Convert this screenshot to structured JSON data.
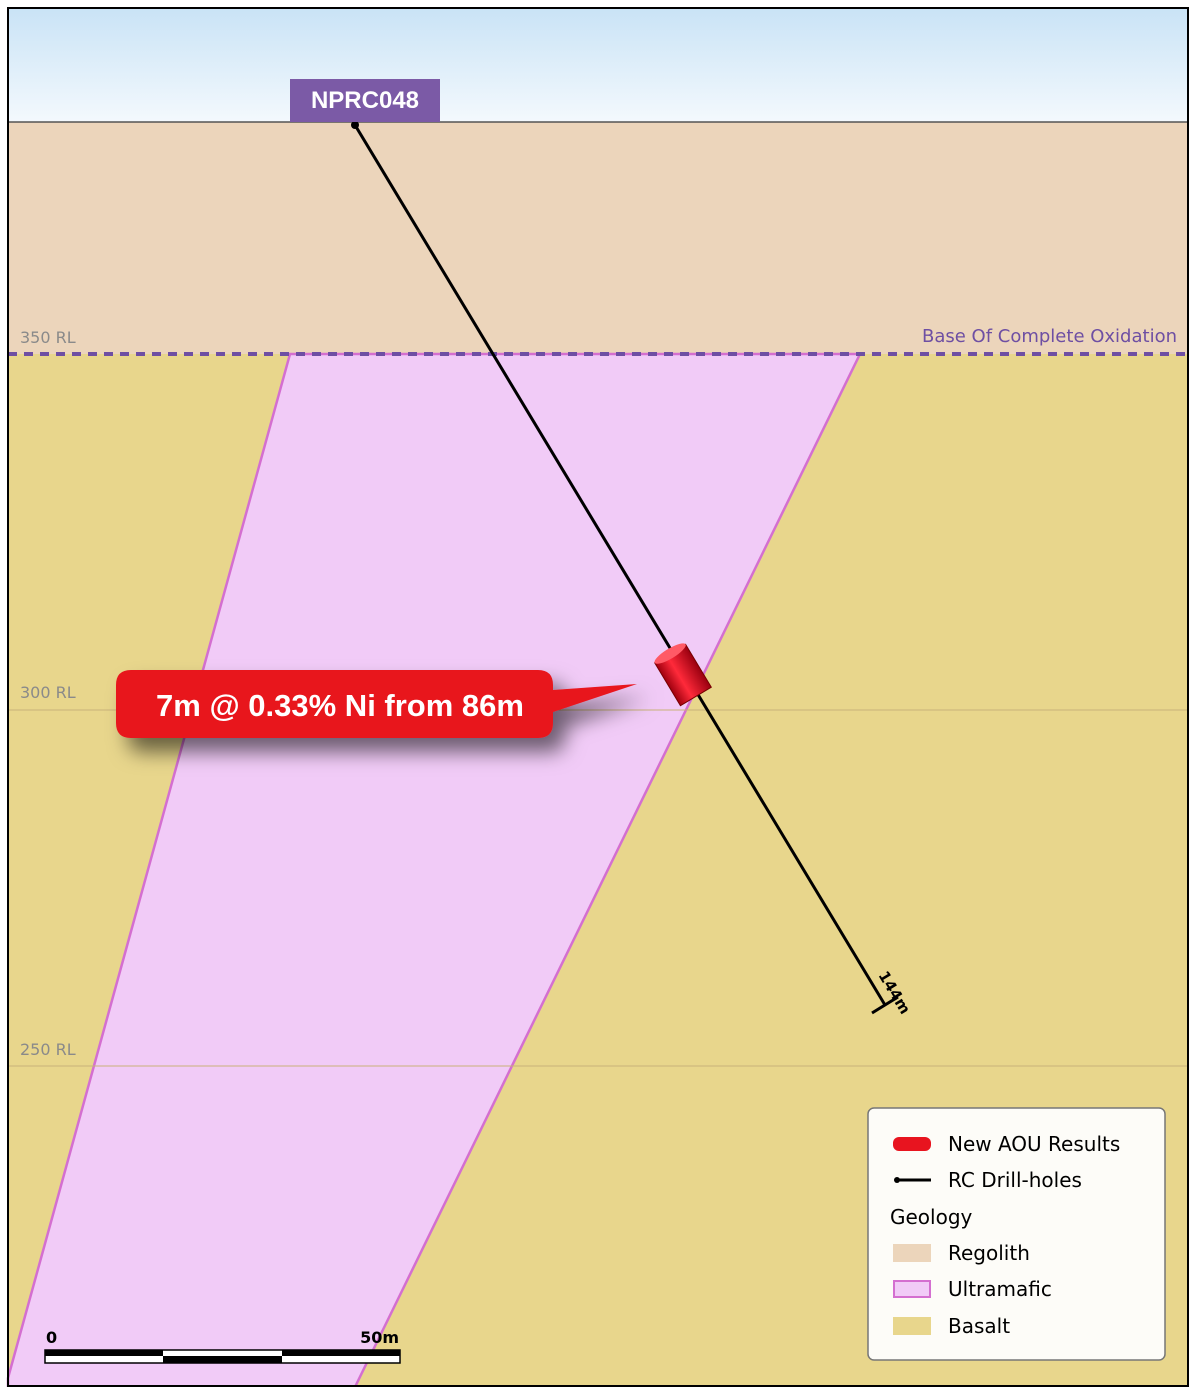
{
  "section": {
    "hole_id": "NPRC048",
    "levels": [
      "350 RL",
      "300 RL",
      "250 RL"
    ],
    "boco_label": "Base Of Complete Oxidation",
    "intercept": "7m @ 0.33% Ni from 86m",
    "hole_depth": "144m"
  },
  "legend": {
    "items": [
      "New AOU Results",
      "RC Drill-holes"
    ],
    "heading": "Geology",
    "geology": [
      "Regolith",
      "Ultramafic",
      "Basalt"
    ]
  },
  "scale_bar": {
    "start": "0",
    "end": "50m"
  }
}
